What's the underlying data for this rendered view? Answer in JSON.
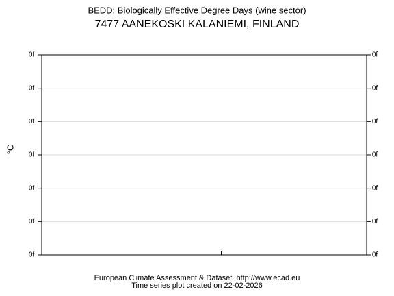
{
  "chart_data": {
    "type": "line",
    "title": "BEDD: Biologically Effective Degree Days (wine sector)",
    "subtitle": "7477 AANEKOSKI KALANIEMI, FINLAND",
    "ylabel": "°C",
    "series": [],
    "ylim": [
      0,
      6
    ],
    "yticks": [
      {
        "value": 0,
        "label": "0f"
      },
      {
        "value": 1,
        "label": "0f"
      },
      {
        "value": 2,
        "label": "0f"
      },
      {
        "value": 3,
        "label": "0f"
      },
      {
        "value": 4,
        "label": "0f"
      },
      {
        "value": 5,
        "label": "0f"
      },
      {
        "value": 6,
        "label": "0f"
      }
    ],
    "grid": true,
    "footer": [
      "European Climate Assessment & Dataset  http://www.ecad.eu",
      "Time series plot created on 22-02-2026"
    ]
  }
}
